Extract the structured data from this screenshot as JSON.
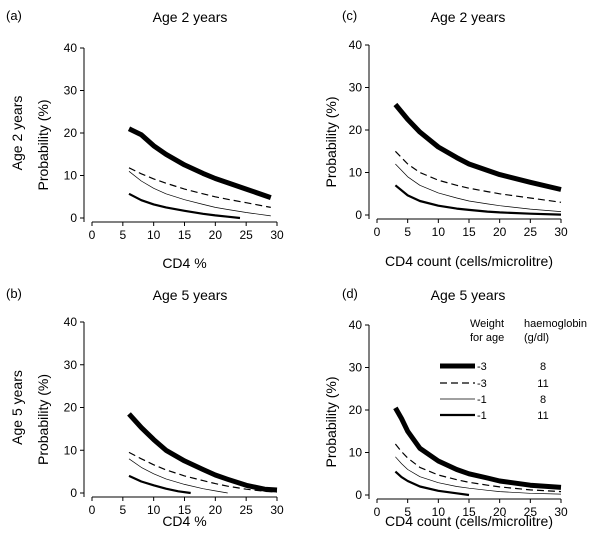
{
  "legend": {
    "header_weight_line1": "Weight",
    "header_weight_line2": "for age",
    "header_hb_line1": "haemoglobin",
    "header_hb_line2": "(g/dl)",
    "entries": [
      {
        "weight": "-3",
        "hb": "8",
        "style": "thick"
      },
      {
        "weight": "-3",
        "hb": "11",
        "style": "dashed"
      },
      {
        "weight": "-1",
        "hb": "8",
        "style": "thin"
      },
      {
        "weight": "-1",
        "hb": "11",
        "style": "medium"
      }
    ]
  },
  "chart_data": [
    {
      "type": "line",
      "panel": "(a)",
      "title": "Age 2 years",
      "xlabel": "CD4 %",
      "ylabel": "Probability (%)",
      "ylabel_prefix": "Age 2 years",
      "xlim": [
        0,
        30
      ],
      "ylim": [
        0,
        40
      ],
      "xticks": [
        0,
        5,
        10,
        15,
        20,
        25,
        30
      ],
      "yticks": [
        0,
        10,
        20,
        30,
        40
      ],
      "series": [
        {
          "style": "thick",
          "x": [
            6,
            8,
            10,
            12,
            15,
            18,
            20,
            22,
            25,
            29
          ],
          "y": [
            21,
            19.6,
            17,
            15,
            12.5,
            10.5,
            9.3,
            8.3,
            6.8,
            4.8
          ]
        },
        {
          "style": "dashed",
          "x": [
            6,
            8,
            10,
            12,
            15,
            18,
            20,
            22,
            25,
            29
          ],
          "y": [
            11.8,
            10.4,
            9.2,
            8.2,
            6.8,
            5.7,
            5,
            4.4,
            3.6,
            2.5
          ]
        },
        {
          "style": "thin",
          "x": [
            6,
            8,
            10,
            12,
            15,
            18,
            20,
            22,
            25,
            29
          ],
          "y": [
            11,
            8.7,
            7,
            5.7,
            4.3,
            3.2,
            2.5,
            2,
            1.3,
            0.5
          ]
        },
        {
          "style": "medium",
          "x": [
            6,
            8,
            10,
            12,
            15,
            18,
            20,
            22,
            24
          ],
          "y": [
            5.7,
            4.2,
            3.2,
            2.5,
            1.7,
            1,
            0.6,
            0.3,
            0
          ]
        }
      ]
    },
    {
      "type": "line",
      "panel": "(c)",
      "title": "Age 2 years",
      "xlabel": "CD4 count (cells/microlitre)",
      "ylabel": "Probability (%)",
      "xlim": [
        0,
        30
      ],
      "ylim": [
        0,
        40
      ],
      "xticks": [
        0,
        5,
        10,
        15,
        20,
        25,
        30
      ],
      "yticks": [
        0,
        10,
        20,
        30,
        40
      ],
      "series": [
        {
          "style": "thick",
          "x": [
            3,
            5,
            7,
            10,
            13,
            15,
            18,
            20,
            25,
            30
          ],
          "y": [
            26,
            22.5,
            19.5,
            16,
            13.5,
            12,
            10.5,
            9.5,
            7.7,
            6
          ]
        },
        {
          "style": "dashed",
          "x": [
            3,
            5,
            7,
            10,
            13,
            15,
            18,
            20,
            25,
            30
          ],
          "y": [
            15,
            12,
            10,
            8.2,
            7,
            6.3,
            5.5,
            5,
            4,
            3
          ]
        },
        {
          "style": "thin",
          "x": [
            3,
            5,
            7,
            10,
            13,
            15,
            18,
            20,
            25,
            30
          ],
          "y": [
            12,
            9,
            7,
            5.2,
            4,
            3.3,
            2.6,
            2.2,
            1.4,
            0.8
          ]
        },
        {
          "style": "medium",
          "x": [
            3,
            5,
            7,
            10,
            13,
            15,
            18,
            20,
            25,
            30
          ],
          "y": [
            7,
            4.6,
            3.3,
            2.2,
            1.5,
            1.2,
            0.8,
            0.6,
            0.3,
            0.1
          ]
        }
      ]
    },
    {
      "type": "line",
      "panel": "(b)",
      "title": "Age 5 years",
      "xlabel": "CD4 %",
      "ylabel": "Probability (%)",
      "ylabel_prefix": "Age 5 years",
      "xlim": [
        0,
        30
      ],
      "ylim": [
        0,
        40
      ],
      "xticks": [
        0,
        5,
        10,
        15,
        20,
        25,
        30
      ],
      "yticks": [
        0,
        10,
        20,
        30,
        40
      ],
      "series": [
        {
          "style": "thick",
          "x": [
            6,
            8,
            10,
            12,
            15,
            18,
            20,
            22,
            25,
            28,
            30
          ],
          "y": [
            18.5,
            15.3,
            12.5,
            10,
            7.5,
            5.5,
            4.2,
            3.2,
            1.8,
            0.9,
            0.7
          ]
        },
        {
          "style": "dashed",
          "x": [
            6,
            8,
            10,
            12,
            15,
            18,
            20,
            22,
            25,
            28,
            30
          ],
          "y": [
            9.5,
            8,
            6.6,
            5.4,
            4,
            2.9,
            2.2,
            1.6,
            0.9,
            0.4,
            0.2
          ]
        },
        {
          "style": "thin",
          "x": [
            6,
            8,
            10,
            12,
            15,
            18,
            20,
            22
          ],
          "y": [
            8,
            6,
            4.5,
            3.3,
            2,
            1,
            0.5,
            0
          ]
        },
        {
          "style": "medium",
          "x": [
            6,
            8,
            10,
            12,
            14,
            16
          ],
          "y": [
            4,
            2.7,
            1.8,
            1,
            0.4,
            0
          ]
        }
      ]
    },
    {
      "type": "line",
      "panel": "(d)",
      "title": "Age 5 years",
      "xlabel": "CD4 count (cells/microlitre)",
      "ylabel": "Probability (%)",
      "xlim": [
        0,
        30
      ],
      "ylim": [
        0,
        40
      ],
      "xticks": [
        0,
        5,
        10,
        15,
        20,
        25,
        30
      ],
      "yticks": [
        0,
        10,
        20,
        30,
        40
      ],
      "series": [
        {
          "style": "thick",
          "x": [
            3,
            4,
            5,
            7,
            10,
            13,
            15,
            18,
            20,
            25,
            30
          ],
          "y": [
            20.5,
            18,
            15,
            11,
            8,
            6,
            5,
            4,
            3.3,
            2.3,
            1.8
          ]
        },
        {
          "style": "dashed",
          "x": [
            3,
            4,
            5,
            7,
            10,
            13,
            15,
            18,
            20,
            25,
            30
          ],
          "y": [
            12,
            10.2,
            8.7,
            6.5,
            4.7,
            3.6,
            3,
            2.3,
            1.9,
            1.2,
            0.8
          ]
        },
        {
          "style": "thin",
          "x": [
            3,
            4,
            5,
            7,
            10,
            13,
            15,
            18,
            20,
            25,
            30
          ],
          "y": [
            9,
            7.4,
            6,
            4.3,
            2.9,
            2,
            1.6,
            1.1,
            0.8,
            0.4,
            0.2
          ]
        },
        {
          "style": "medium",
          "x": [
            3,
            4,
            5,
            7,
            10,
            13,
            15
          ],
          "y": [
            5.5,
            4.2,
            3.3,
            2,
            1,
            0.4,
            0
          ]
        }
      ]
    }
  ]
}
